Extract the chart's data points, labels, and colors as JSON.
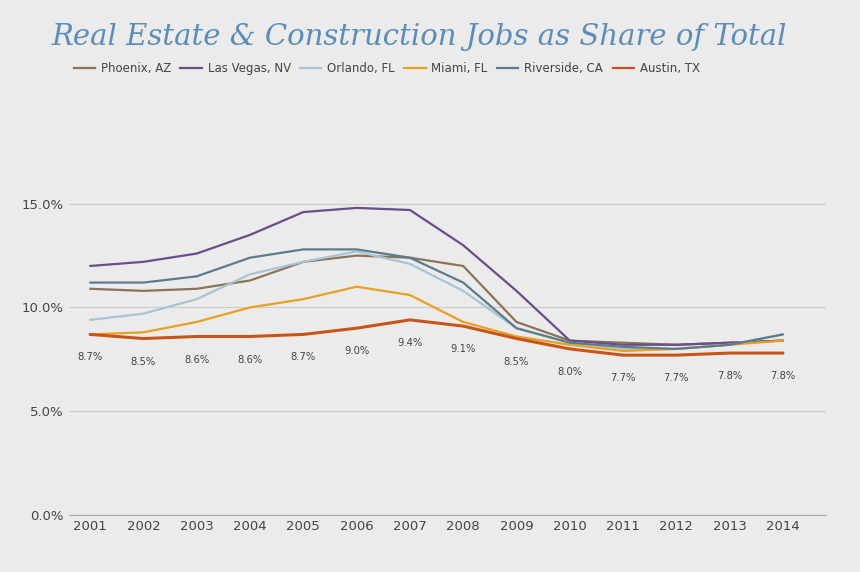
{
  "title": "Real Estate & Construction Jobs as Share of Total",
  "title_color": "#5b8db8",
  "background_color": "#ebebeb",
  "plot_background": "#ebebeb",
  "years": [
    2001,
    2002,
    2003,
    2004,
    2005,
    2006,
    2007,
    2008,
    2009,
    2010,
    2011,
    2012,
    2013,
    2014
  ],
  "series": [
    {
      "label": "Phoenix, AZ",
      "color": "#8b7355",
      "linewidth": 1.6,
      "data": [
        0.109,
        0.108,
        0.109,
        0.113,
        0.122,
        0.125,
        0.124,
        0.12,
        0.093,
        0.084,
        0.083,
        0.082,
        0.083,
        0.084
      ]
    },
    {
      "label": "Las Vegas, NV",
      "color": "#6b4c8c",
      "linewidth": 1.6,
      "data": [
        0.12,
        0.122,
        0.126,
        0.135,
        0.146,
        0.148,
        0.147,
        0.13,
        0.108,
        0.084,
        0.082,
        0.082,
        0.083,
        0.084
      ]
    },
    {
      "label": "Orlando, FL",
      "color": "#a8c4d4",
      "linewidth": 1.6,
      "data": [
        0.094,
        0.097,
        0.104,
        0.116,
        0.122,
        0.127,
        0.121,
        0.108,
        0.09,
        0.083,
        0.08,
        0.08,
        0.082,
        0.087
      ]
    },
    {
      "label": "Miami, FL",
      "color": "#e8a020",
      "linewidth": 1.6,
      "data": [
        0.087,
        0.088,
        0.093,
        0.1,
        0.104,
        0.11,
        0.106,
        0.093,
        0.086,
        0.082,
        0.079,
        0.08,
        0.082,
        0.084
      ]
    },
    {
      "label": "Riverside, CA",
      "color": "#5b7c8c",
      "linewidth": 1.6,
      "data": [
        0.112,
        0.112,
        0.115,
        0.124,
        0.128,
        0.128,
        0.124,
        0.112,
        0.09,
        0.083,
        0.081,
        0.08,
        0.082,
        0.087
      ]
    },
    {
      "label": "Austin, TX",
      "color": "#c8541a",
      "linewidth": 2.2,
      "data": [
        0.087,
        0.085,
        0.086,
        0.086,
        0.087,
        0.09,
        0.094,
        0.091,
        0.085,
        0.08,
        0.077,
        0.077,
        0.078,
        0.078
      ]
    }
  ],
  "austin_annotations": [
    [
      2001,
      0.087,
      "8.7%"
    ],
    [
      2002,
      0.085,
      "8.5%"
    ],
    [
      2003,
      0.086,
      "8.6%"
    ],
    [
      2004,
      0.086,
      "8.6%"
    ],
    [
      2005,
      0.087,
      "8.7%"
    ],
    [
      2006,
      0.09,
      "9.0%"
    ],
    [
      2007,
      0.094,
      "9.4%"
    ],
    [
      2008,
      0.091,
      "9.1%"
    ],
    [
      2009,
      0.085,
      "8.5%"
    ],
    [
      2010,
      0.08,
      "8.0%"
    ],
    [
      2011,
      0.077,
      "7.7%"
    ],
    [
      2012,
      0.077,
      "7.7%"
    ],
    [
      2013,
      0.078,
      "7.8%"
    ],
    [
      2014,
      0.078,
      "7.8%"
    ]
  ],
  "ylim": [
    0.0,
    0.16
  ],
  "yticks": [
    0.0,
    0.05,
    0.1,
    0.15
  ],
  "ytick_labels": [
    "0.0%",
    "5.0%",
    "10.0%",
    "15.0%"
  ],
  "xlim": [
    2000.6,
    2014.8
  ]
}
